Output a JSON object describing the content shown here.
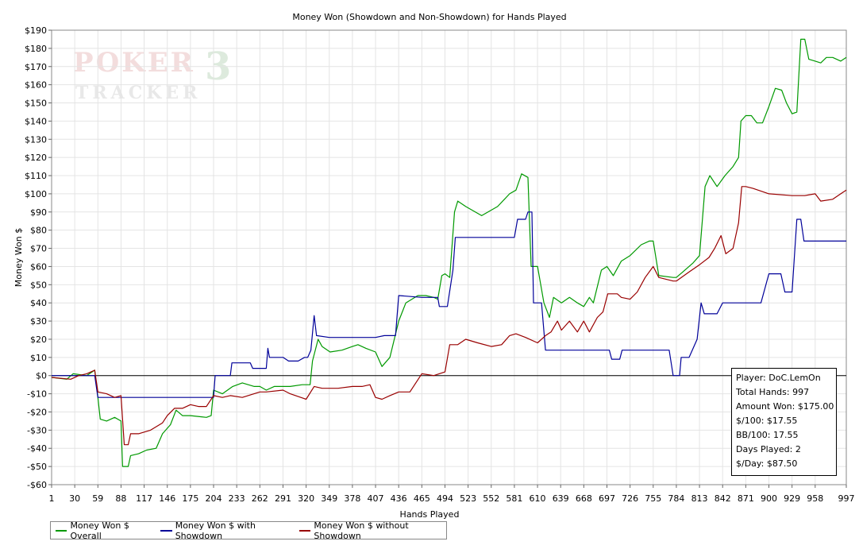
{
  "chart_data": {
    "type": "line",
    "title": "Money Won (Showdown and Non-Showdown) for Hands Played",
    "xlabel": "Hands Played",
    "ylabel": "Money Won $",
    "xlim": [
      1,
      997
    ],
    "ylim": [
      -60,
      190
    ],
    "x_ticks": [
      1,
      30,
      59,
      88,
      117,
      146,
      175,
      204,
      233,
      262,
      291,
      320,
      349,
      378,
      407,
      436,
      465,
      494,
      523,
      552,
      581,
      610,
      639,
      668,
      697,
      726,
      755,
      784,
      813,
      842,
      871,
      900,
      929,
      958,
      997
    ],
    "y_ticks": [
      -60,
      -50,
      -40,
      -30,
      -20,
      -10,
      0,
      10,
      20,
      30,
      40,
      50,
      60,
      70,
      80,
      90,
      100,
      110,
      120,
      130,
      140,
      150,
      160,
      170,
      180,
      190
    ],
    "y_tick_labels": [
      "-$60",
      "-$50",
      "-$40",
      "-$30",
      "-$20",
      "-$10",
      "$0",
      "$10",
      "$20",
      "$30",
      "$40",
      "$50",
      "$60",
      "$70",
      "$80",
      "$90",
      "$100",
      "$110",
      "$120",
      "$130",
      "$140",
      "$150",
      "$160",
      "$170",
      "$180",
      "$190"
    ],
    "grid": true,
    "legend_position": "bottom-left",
    "series": [
      {
        "name": "Money Won $ Overall",
        "color": "#009900",
        "points": [
          [
            1,
            -1
          ],
          [
            20,
            -2
          ],
          [
            28,
            1
          ],
          [
            45,
            0
          ],
          [
            55,
            3
          ],
          [
            59,
            -12
          ],
          [
            62,
            -24
          ],
          [
            70,
            -25
          ],
          [
            80,
            -23
          ],
          [
            88,
            -25
          ],
          [
            90,
            -50
          ],
          [
            97,
            -50
          ],
          [
            100,
            -44
          ],
          [
            110,
            -43
          ],
          [
            120,
            -41
          ],
          [
            132,
            -40
          ],
          [
            140,
            -32
          ],
          [
            150,
            -27
          ],
          [
            157,
            -19
          ],
          [
            165,
            -22
          ],
          [
            175,
            -22
          ],
          [
            195,
            -23
          ],
          [
            201,
            -22
          ],
          [
            204,
            -8
          ],
          [
            215,
            -10
          ],
          [
            228,
            -6
          ],
          [
            240,
            -4
          ],
          [
            255,
            -6
          ],
          [
            262,
            -6
          ],
          [
            270,
            -8
          ],
          [
            280,
            -6
          ],
          [
            300,
            -6
          ],
          [
            315,
            -5
          ],
          [
            320,
            -5
          ],
          [
            325,
            -5
          ],
          [
            328,
            8
          ],
          [
            335,
            20
          ],
          [
            340,
            16
          ],
          [
            350,
            13
          ],
          [
            365,
            14
          ],
          [
            378,
            16
          ],
          [
            385,
            17
          ],
          [
            395,
            15
          ],
          [
            407,
            13
          ],
          [
            415,
            5
          ],
          [
            425,
            10
          ],
          [
            436,
            30
          ],
          [
            445,
            40
          ],
          [
            460,
            44
          ],
          [
            470,
            44
          ],
          [
            480,
            43
          ],
          [
            485,
            42
          ],
          [
            490,
            55
          ],
          [
            494,
            56
          ],
          [
            500,
            54
          ],
          [
            506,
            90
          ],
          [
            510,
            96
          ],
          [
            520,
            93
          ],
          [
            540,
            88
          ],
          [
            560,
            93
          ],
          [
            575,
            100
          ],
          [
            583,
            102
          ],
          [
            590,
            111
          ],
          [
            598,
            109
          ],
          [
            602,
            60
          ],
          [
            610,
            60
          ],
          [
            618,
            40
          ],
          [
            625,
            32
          ],
          [
            630,
            43
          ],
          [
            640,
            40
          ],
          [
            650,
            43
          ],
          [
            660,
            40
          ],
          [
            668,
            38
          ],
          [
            675,
            43
          ],
          [
            680,
            40
          ],
          [
            690,
            58
          ],
          [
            697,
            60
          ],
          [
            705,
            55
          ],
          [
            715,
            63
          ],
          [
            726,
            66
          ],
          [
            740,
            72
          ],
          [
            750,
            74
          ],
          [
            755,
            74
          ],
          [
            762,
            55
          ],
          [
            780,
            54
          ],
          [
            784,
            54
          ],
          [
            792,
            57
          ],
          [
            805,
            62
          ],
          [
            813,
            66
          ],
          [
            820,
            104
          ],
          [
            826,
            110
          ],
          [
            835,
            104
          ],
          [
            845,
            110
          ],
          [
            855,
            115
          ],
          [
            862,
            120
          ],
          [
            865,
            140
          ],
          [
            871,
            143
          ],
          [
            878,
            143
          ],
          [
            885,
            139
          ],
          [
            892,
            139
          ],
          [
            900,
            148
          ],
          [
            908,
            158
          ],
          [
            916,
            157
          ],
          [
            922,
            150
          ],
          [
            929,
            144
          ],
          [
            935,
            145
          ],
          [
            940,
            185
          ],
          [
            945,
            185
          ],
          [
            950,
            174
          ],
          [
            958,
            173
          ],
          [
            965,
            172
          ],
          [
            972,
            175
          ],
          [
            980,
            175
          ],
          [
            990,
            173
          ],
          [
            997,
            175
          ]
        ]
      },
      {
        "name": "Money Won $ with Showdown",
        "color": "#000099",
        "points": [
          [
            1,
            0
          ],
          [
            55,
            0
          ],
          [
            59,
            -12
          ],
          [
            62,
            -12
          ],
          [
            175,
            -12
          ],
          [
            204,
            -12
          ],
          [
            206,
            0
          ],
          [
            225,
            0
          ],
          [
            227,
            7
          ],
          [
            250,
            7
          ],
          [
            253,
            4
          ],
          [
            270,
            4
          ],
          [
            272,
            15
          ],
          [
            274,
            10
          ],
          [
            291,
            10
          ],
          [
            298,
            8
          ],
          [
            310,
            8
          ],
          [
            318,
            10
          ],
          [
            322,
            10
          ],
          [
            326,
            14
          ],
          [
            330,
            33
          ],
          [
            333,
            22
          ],
          [
            349,
            21
          ],
          [
            378,
            21
          ],
          [
            407,
            21
          ],
          [
            418,
            22
          ],
          [
            432,
            22
          ],
          [
            436,
            44
          ],
          [
            465,
            43
          ],
          [
            485,
            43
          ],
          [
            487,
            38
          ],
          [
            497,
            38
          ],
          [
            504,
            58
          ],
          [
            507,
            76
          ],
          [
            523,
            76
          ],
          [
            552,
            76
          ],
          [
            581,
            76
          ],
          [
            585,
            86
          ],
          [
            595,
            86
          ],
          [
            598,
            90
          ],
          [
            603,
            90
          ],
          [
            605,
            40
          ],
          [
            615,
            40
          ],
          [
            620,
            14
          ],
          [
            639,
            14
          ],
          [
            650,
            14
          ],
          [
            668,
            14
          ],
          [
            690,
            14
          ],
          [
            700,
            14
          ],
          [
            703,
            9
          ],
          [
            713,
            9
          ],
          [
            716,
            14
          ],
          [
            730,
            14
          ],
          [
            755,
            14
          ],
          [
            775,
            14
          ],
          [
            780,
            0
          ],
          [
            788,
            0
          ],
          [
            790,
            10
          ],
          [
            800,
            10
          ],
          [
            810,
            20
          ],
          [
            815,
            40
          ],
          [
            819,
            34
          ],
          [
            835,
            34
          ],
          [
            842,
            40
          ],
          [
            871,
            40
          ],
          [
            880,
            40
          ],
          [
            890,
            40
          ],
          [
            900,
            56
          ],
          [
            915,
            56
          ],
          [
            920,
            46
          ],
          [
            929,
            46
          ],
          [
            935,
            86
          ],
          [
            940,
            86
          ],
          [
            944,
            74
          ],
          [
            958,
            74
          ],
          [
            997,
            74
          ]
        ]
      },
      {
        "name": "Money Won $ without Showdown",
        "color": "#990000",
        "points": [
          [
            1,
            -1
          ],
          [
            25,
            -2
          ],
          [
            35,
            0
          ],
          [
            45,
            1
          ],
          [
            55,
            3
          ],
          [
            59,
            -9
          ],
          [
            70,
            -10
          ],
          [
            80,
            -12
          ],
          [
            88,
            -11
          ],
          [
            92,
            -38
          ],
          [
            97,
            -38
          ],
          [
            100,
            -32
          ],
          [
            110,
            -32
          ],
          [
            125,
            -30
          ],
          [
            140,
            -26
          ],
          [
            146,
            -22
          ],
          [
            155,
            -18
          ],
          [
            165,
            -18
          ],
          [
            175,
            -16
          ],
          [
            185,
            -17
          ],
          [
            195,
            -17
          ],
          [
            204,
            -11
          ],
          [
            215,
            -12
          ],
          [
            225,
            -11
          ],
          [
            240,
            -12
          ],
          [
            262,
            -9
          ],
          [
            270,
            -9
          ],
          [
            291,
            -8
          ],
          [
            300,
            -10
          ],
          [
            320,
            -13
          ],
          [
            330,
            -6
          ],
          [
            340,
            -7
          ],
          [
            360,
            -7
          ],
          [
            378,
            -6
          ],
          [
            390,
            -6
          ],
          [
            400,
            -5
          ],
          [
            407,
            -12
          ],
          [
            415,
            -13
          ],
          [
            425,
            -11
          ],
          [
            436,
            -9
          ],
          [
            450,
            -9
          ],
          [
            465,
            1
          ],
          [
            480,
            0
          ],
          [
            494,
            2
          ],
          [
            500,
            17
          ],
          [
            510,
            17
          ],
          [
            520,
            20
          ],
          [
            535,
            18
          ],
          [
            552,
            16
          ],
          [
            565,
            17
          ],
          [
            575,
            22
          ],
          [
            583,
            23
          ],
          [
            595,
            21
          ],
          [
            610,
            18
          ],
          [
            620,
            22
          ],
          [
            627,
            24
          ],
          [
            635,
            30
          ],
          [
            640,
            25
          ],
          [
            650,
            30
          ],
          [
            660,
            24
          ],
          [
            668,
            30
          ],
          [
            675,
            24
          ],
          [
            685,
            32
          ],
          [
            692,
            35
          ],
          [
            698,
            45
          ],
          [
            710,
            45
          ],
          [
            715,
            43
          ],
          [
            726,
            42
          ],
          [
            735,
            46
          ],
          [
            745,
            54
          ],
          [
            755,
            60
          ],
          [
            762,
            54
          ],
          [
            780,
            52
          ],
          [
            784,
            52
          ],
          [
            800,
            57
          ],
          [
            813,
            61
          ],
          [
            825,
            65
          ],
          [
            832,
            70
          ],
          [
            840,
            77
          ],
          [
            846,
            67
          ],
          [
            855,
            70
          ],
          [
            862,
            84
          ],
          [
            866,
            104
          ],
          [
            871,
            104
          ],
          [
            880,
            103
          ],
          [
            900,
            100
          ],
          [
            929,
            99
          ],
          [
            945,
            99
          ],
          [
            958,
            100
          ],
          [
            965,
            96
          ],
          [
            980,
            97
          ],
          [
            990,
            100
          ],
          [
            997,
            102
          ]
        ]
      }
    ]
  },
  "stats": {
    "player": "Player: DoC.LemOn",
    "total_hands": "Total Hands: 997",
    "amount_won": "Amount Won: $175.00",
    "per_100": "$/100: $17.55",
    "bb_per_100": "BB/100: 17.55",
    "days_played": "Days Played: 2",
    "per_day": "$/Day: $87.50"
  },
  "watermark": "POKER TRACKER 3"
}
